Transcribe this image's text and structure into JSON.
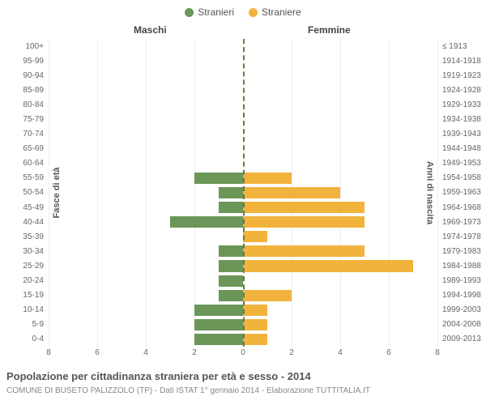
{
  "chart": {
    "type": "population-pyramid",
    "legend": [
      {
        "label": "Stranieri",
        "color": "#6b9658"
      },
      {
        "label": "Straniere",
        "color": "#f2b33d"
      }
    ],
    "header_left": "Maschi",
    "header_right": "Femmine",
    "y_title_left": "Fasce di età",
    "y_title_right": "Anni di nascita",
    "x_max": 8,
    "x_ticks": [
      8,
      6,
      4,
      2,
      0,
      2,
      4,
      6,
      8
    ],
    "x_tick_positions_pct": [
      0,
      12.5,
      25,
      37.5,
      50,
      62.5,
      75,
      87.5,
      100
    ],
    "grid_tick_positions_pct": [
      0,
      12.5,
      25,
      37.5,
      62.5,
      75,
      87.5,
      100
    ],
    "bar_color_left": "#6b9658",
    "bar_color_right": "#f2b33d",
    "background_color": "#ffffff",
    "grid_color": "#eeeeee",
    "center_line_color": "#6b7a3a",
    "label_fontsize": 10,
    "rows": [
      {
        "age": "100+",
        "birth": "≤ 1913",
        "m": 0,
        "f": 0
      },
      {
        "age": "95-99",
        "birth": "1914-1918",
        "m": 0,
        "f": 0
      },
      {
        "age": "90-94",
        "birth": "1919-1923",
        "m": 0,
        "f": 0
      },
      {
        "age": "85-89",
        "birth": "1924-1928",
        "m": 0,
        "f": 0
      },
      {
        "age": "80-84",
        "birth": "1929-1933",
        "m": 0,
        "f": 0
      },
      {
        "age": "75-79",
        "birth": "1934-1938",
        "m": 0,
        "f": 0
      },
      {
        "age": "70-74",
        "birth": "1939-1943",
        "m": 0,
        "f": 0
      },
      {
        "age": "65-69",
        "birth": "1944-1948",
        "m": 0,
        "f": 0
      },
      {
        "age": "60-64",
        "birth": "1949-1953",
        "m": 0,
        "f": 0
      },
      {
        "age": "55-59",
        "birth": "1954-1958",
        "m": 2,
        "f": 2
      },
      {
        "age": "50-54",
        "birth": "1959-1963",
        "m": 1,
        "f": 4
      },
      {
        "age": "45-49",
        "birth": "1964-1968",
        "m": 1,
        "f": 5
      },
      {
        "age": "40-44",
        "birth": "1969-1973",
        "m": 3,
        "f": 5
      },
      {
        "age": "35-39",
        "birth": "1974-1978",
        "m": 0,
        "f": 1
      },
      {
        "age": "30-34",
        "birth": "1979-1983",
        "m": 1,
        "f": 5
      },
      {
        "age": "25-29",
        "birth": "1984-1988",
        "m": 1,
        "f": 7
      },
      {
        "age": "20-24",
        "birth": "1989-1993",
        "m": 1,
        "f": 0
      },
      {
        "age": "15-19",
        "birth": "1994-1998",
        "m": 1,
        "f": 2
      },
      {
        "age": "10-14",
        "birth": "1999-2003",
        "m": 2,
        "f": 1
      },
      {
        "age": "5-9",
        "birth": "2004-2008",
        "m": 2,
        "f": 1
      },
      {
        "age": "0-4",
        "birth": "2009-2013",
        "m": 2,
        "f": 1
      }
    ],
    "title": "Popolazione per cittadinanza straniera per età e sesso - 2014",
    "subtitle": "COMUNE DI BUSETO PALIZZOLO (TP) - Dati ISTAT 1° gennaio 2014 - Elaborazione TUTTITALIA.IT"
  }
}
